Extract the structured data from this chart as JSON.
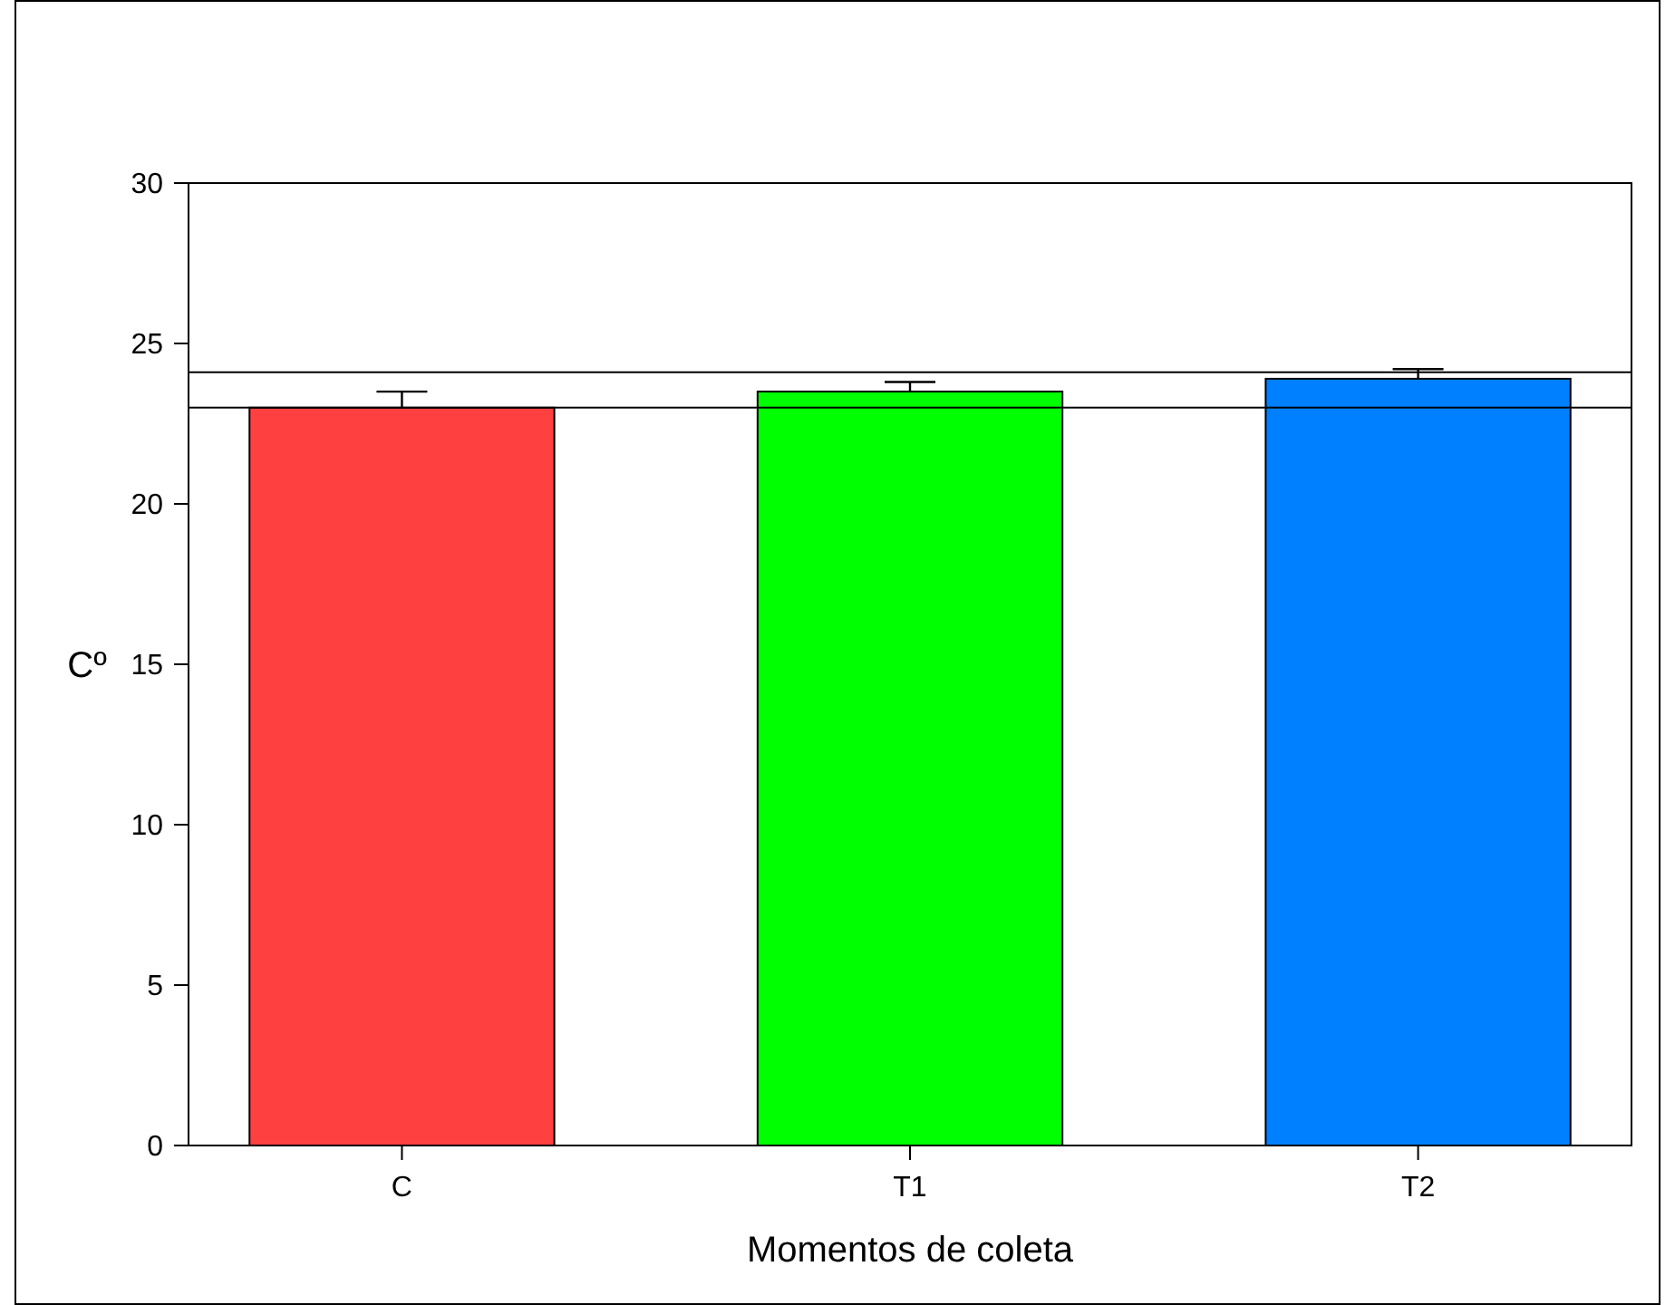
{
  "chart_data": {
    "type": "bar",
    "xlabel": "Momentos de coleta",
    "ylabel": "Cº",
    "categories": [
      "C",
      "T1",
      "T2"
    ],
    "values": [
      23.0,
      23.5,
      23.9
    ],
    "colors": [
      "#ff4040",
      "#00ff00",
      "#0080ff"
    ],
    "errors": [
      [
        23.0,
        23.5
      ],
      [
        23.5,
        23.8
      ],
      [
        23.9,
        24.2
      ]
    ],
    "ylim": [
      0,
      30
    ],
    "yticks": [
      0,
      5,
      10,
      15,
      20,
      25,
      30
    ],
    "grid": false,
    "ref_lines": [
      {
        "axis": "y",
        "value": 24.1
      },
      {
        "axis": "y",
        "value": 23.0
      }
    ]
  }
}
